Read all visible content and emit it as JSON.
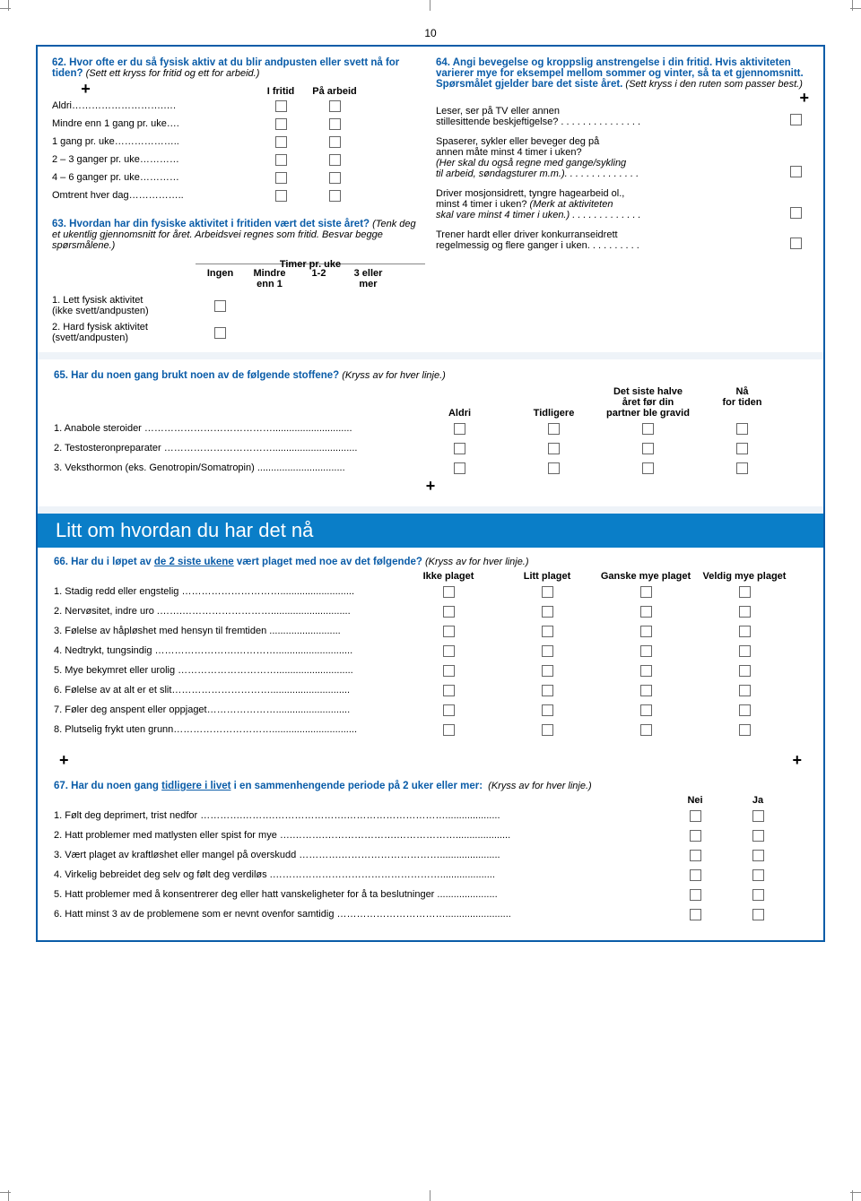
{
  "page_number": "10",
  "section_heading": "Litt om hvordan du har det nå",
  "q62": {
    "title": "62. Hvor ofte er du så fysisk aktiv at du blir andpusten eller svett nå for tiden?",
    "instr": "(Sett ett kryss for fritid og ett for arbeid.)",
    "col1": "I fritid",
    "col2": "På arbeid",
    "rows": [
      "Aldri……………………….….",
      "Mindre enn 1 gang pr. uke….",
      "1 gang pr. uke………………..",
      "2 – 3 ganger pr. uke…………",
      "4 – 6 ganger pr. uke…………",
      "Omtrent hver dag…………….."
    ]
  },
  "q63": {
    "title": "63. Hvordan har din fysiske aktivitet i fritiden vært det siste året?",
    "instr": "(Tenk deg et ukentlig gjennomsnitt for året. Arbeidsvei regnes som fritid. Besvar begge spørsmålene.)",
    "hours_header": "Timer pr. uke",
    "cols": [
      "Ingen",
      "Mindre enn 1",
      "1-2",
      "3 eller mer"
    ],
    "rows": [
      {
        "label": "1. Lett fysisk aktivitet",
        "sub": "(ikke svett/andpusten)"
      },
      {
        "label": "2. Hard fysisk aktivitet",
        "sub": "(svett/andpusten)"
      }
    ]
  },
  "q64": {
    "title": "64. Angi bevegelse og kroppslig anstrengelse i din fritid. Hvis aktiviteten varierer mye for eksempel mellom sommer og vinter, så ta et gjennomsnitt. Spørsmålet gjelder bare det siste året.",
    "instr": "(Sett kryss i den ruten som passer best.)",
    "items": [
      {
        "a": "Leser, ser på TV eller annen",
        "b": "stillesittende beskjeftigelse? . . . . . . . . . . . . . . ."
      },
      {
        "a": "Spaserer, sykler eller beveger deg på",
        "b": "annen måte minst 4 timer i uken?",
        "c": "(Her skal du også regne med gange/sykling",
        "d": "til arbeid, søndagsturer m.m.). . . . . . . . . . . . . ."
      },
      {
        "a": "Driver mosjonsidrett, tyngre hagearbeid ol.,",
        "b": "minst 4 timer i uken?",
        "c_i": "(Merk at aktiviteten",
        "d_i": "skal vare minst 4 timer i uken.) . . . . . . . . . . . . ."
      },
      {
        "a": "Trener hardt eller driver konkurranseidrett",
        "b": "regelmessig og flere ganger i uken. . . . . . . . . ."
      }
    ]
  },
  "q65": {
    "title": "65. Har du noen gang brukt noen av de følgende stoffene?",
    "instr": "(Kryss av for hver linje.)",
    "cols": [
      "Aldri",
      "Tidligere",
      "Det siste halve året før din partner ble gravid",
      "Nå for tiden"
    ],
    "col3_l1": "Det siste halve",
    "col3_l2": "året før din",
    "col3_l3": "partner ble gravid",
    "col4_l1": "Nå",
    "col4_l2": "for tiden",
    "rows": [
      "1. Anabole steroider ………………………………….............................",
      "2. Testosteronpreparater ……………………………...............................",
      "3. Veksthormon (eks. Genotropin/Somatropin) ................................"
    ]
  },
  "q66": {
    "title_a": "66. Har du i løpet av ",
    "title_u": "de 2 siste ukene",
    "title_b": " vært plaget med noe av det følgende?",
    "instr": "(Kryss av for hver linje.)",
    "cols": [
      "Ikke plaget",
      "Litt plaget",
      "Ganske mye plaget",
      "Veldig mye plaget"
    ],
    "rows": [
      "1. Stadig redd eller engstelig …………………………...........................",
      "2. Nervøsitet, indre uro .…….……………………….............................",
      "3. Følelse av håpløshet med hensyn til fremtiden ..........................",
      "4. Nedtrykt, tungsindig …………………….…………............................",
      "5. Mye bekymret eller urolig …………………………............................",
      "6. Følelse av at alt er et slit………………………….............................",
      "7. Føler deg anspent eller oppjaget…………………...........................",
      "8. Plutselig frykt uten grunn…………………………..............................."
    ]
  },
  "q67": {
    "title_a": "67. Har du noen gang ",
    "title_u": "tidligere i livet",
    "title_b": " i en sammenhengende periode på 2 uker eller mer:",
    "instr": "(Kryss av for hver linje.)",
    "cols": [
      "Nei",
      "Ja"
    ],
    "rows": [
      "1. Følt deg deprimert, trist nedfor ………….……….………………….…………………………....................",
      "2. Hatt problemer med matlysten eller spist for mye ….……….………………….………………....................",
      "3. Vært plaget av kraftløshet eller mangel på overskudd ………….…………………………......................",
      "4. Virkelig bebreidet deg selv og følt deg verdiløs .……………………………………………....................",
      "5. Hatt problemer med å konsentrerer deg eller hatt vanskeligheter for å ta beslutninger ......................",
      "6. Hatt minst 3 av de problemene som er nevnt ovenfor samtidig ……………………………........................"
    ]
  }
}
